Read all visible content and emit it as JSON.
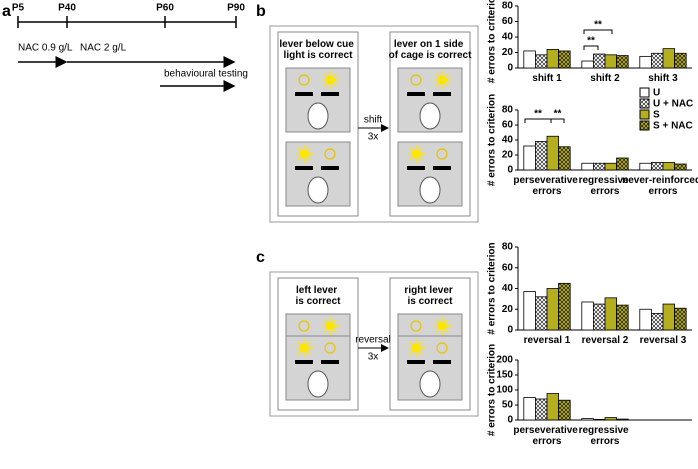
{
  "panels": [
    "a",
    "b",
    "c"
  ],
  "timeline": {
    "ticks": [
      "P5",
      "P40",
      "P60",
      "P90"
    ],
    "treatments": [
      "NAC 0.9 g/L",
      "NAC 2 g/L"
    ],
    "testing": "behavioural testing"
  },
  "diagram_b": {
    "left": "lever below cue light is correct",
    "right": "lever on 1 side of cage is correct",
    "arrow": [
      "shift",
      "3x"
    ]
  },
  "diagram_c": {
    "left": "left lever is correct",
    "right": "right lever is correct",
    "arrow": [
      "reversal",
      "3x"
    ]
  },
  "chart_data": [
    {
      "type": "bar",
      "y_label": "# errors to criterion",
      "categories": [
        "shift 1",
        "shift 2",
        "shift 3"
      ],
      "series": [
        {
          "name": "U",
          "color": "#ffffff",
          "pattern": "none",
          "values": [
            22,
            9,
            15
          ]
        },
        {
          "name": "U + NAC",
          "color": "#ffffff",
          "pattern": "crosshatch",
          "values": [
            17,
            18,
            19
          ]
        },
        {
          "name": "S",
          "color": "#b5ae1e",
          "pattern": "none",
          "values": [
            24,
            17,
            25
          ]
        },
        {
          "name": "S + NAC",
          "color": "#b5ae1e",
          "pattern": "crosshatch",
          "values": [
            22,
            16,
            19
          ]
        }
      ],
      "ylim": [
        0,
        80
      ],
      "yticks": [
        0,
        20,
        40,
        60,
        80
      ],
      "annotations": [
        "**",
        "**"
      ]
    },
    {
      "type": "bar",
      "y_label": "# errors to criterion",
      "categories": [
        "perseverative errors",
        "regressive errors",
        "never-reinforced errors"
      ],
      "series": [
        {
          "name": "U",
          "color": "#ffffff",
          "pattern": "none",
          "values": [
            32,
            9,
            9
          ]
        },
        {
          "name": "U + NAC",
          "color": "#ffffff",
          "pattern": "crosshatch",
          "values": [
            38,
            9,
            10
          ]
        },
        {
          "name": "S",
          "color": "#b5ae1e",
          "pattern": "none",
          "values": [
            45,
            9,
            10
          ]
        },
        {
          "name": "S + NAC",
          "color": "#b5ae1e",
          "pattern": "crosshatch",
          "values": [
            31,
            16,
            8
          ]
        }
      ],
      "ylim": [
        0,
        80
      ],
      "yticks": [
        0,
        20,
        40,
        60,
        80
      ],
      "legend": "upper right",
      "annotations": [
        "**",
        "**"
      ]
    },
    {
      "type": "bar",
      "y_label": "# errors to criterion",
      "categories": [
        "reversal 1",
        "reversal 2",
        "reversal 3"
      ],
      "series": [
        {
          "name": "U",
          "color": "#ffffff",
          "pattern": "none",
          "values": [
            37,
            27,
            20
          ]
        },
        {
          "name": "U + NAC",
          "color": "#ffffff",
          "pattern": "crosshatch",
          "values": [
            32,
            25,
            16
          ]
        },
        {
          "name": "S",
          "color": "#b5ae1e",
          "pattern": "none",
          "values": [
            40,
            31,
            25
          ]
        },
        {
          "name": "S + NAC",
          "color": "#b5ae1e",
          "pattern": "crosshatch",
          "values": [
            45,
            24,
            21
          ]
        }
      ],
      "ylim": [
        0,
        80
      ],
      "yticks": [
        0,
        20,
        40,
        60,
        80
      ]
    },
    {
      "type": "bar",
      "y_label": "# errors to criterion",
      "categories": [
        "perseverative errors",
        "regressive errors"
      ],
      "series": [
        {
          "name": "U",
          "color": "#ffffff",
          "pattern": "none",
          "values": [
            75,
            5
          ]
        },
        {
          "name": "U + NAC",
          "color": "#ffffff",
          "pattern": "crosshatch",
          "values": [
            70,
            2
          ]
        },
        {
          "name": "S",
          "color": "#b5ae1e",
          "pattern": "none",
          "values": [
            88,
            8
          ]
        },
        {
          "name": "S + NAC",
          "color": "#b5ae1e",
          "pattern": "crosshatch",
          "values": [
            66,
            3
          ]
        }
      ],
      "ylim": [
        0,
        200
      ],
      "yticks": [
        0,
        50,
        100,
        150,
        200
      ]
    }
  ]
}
